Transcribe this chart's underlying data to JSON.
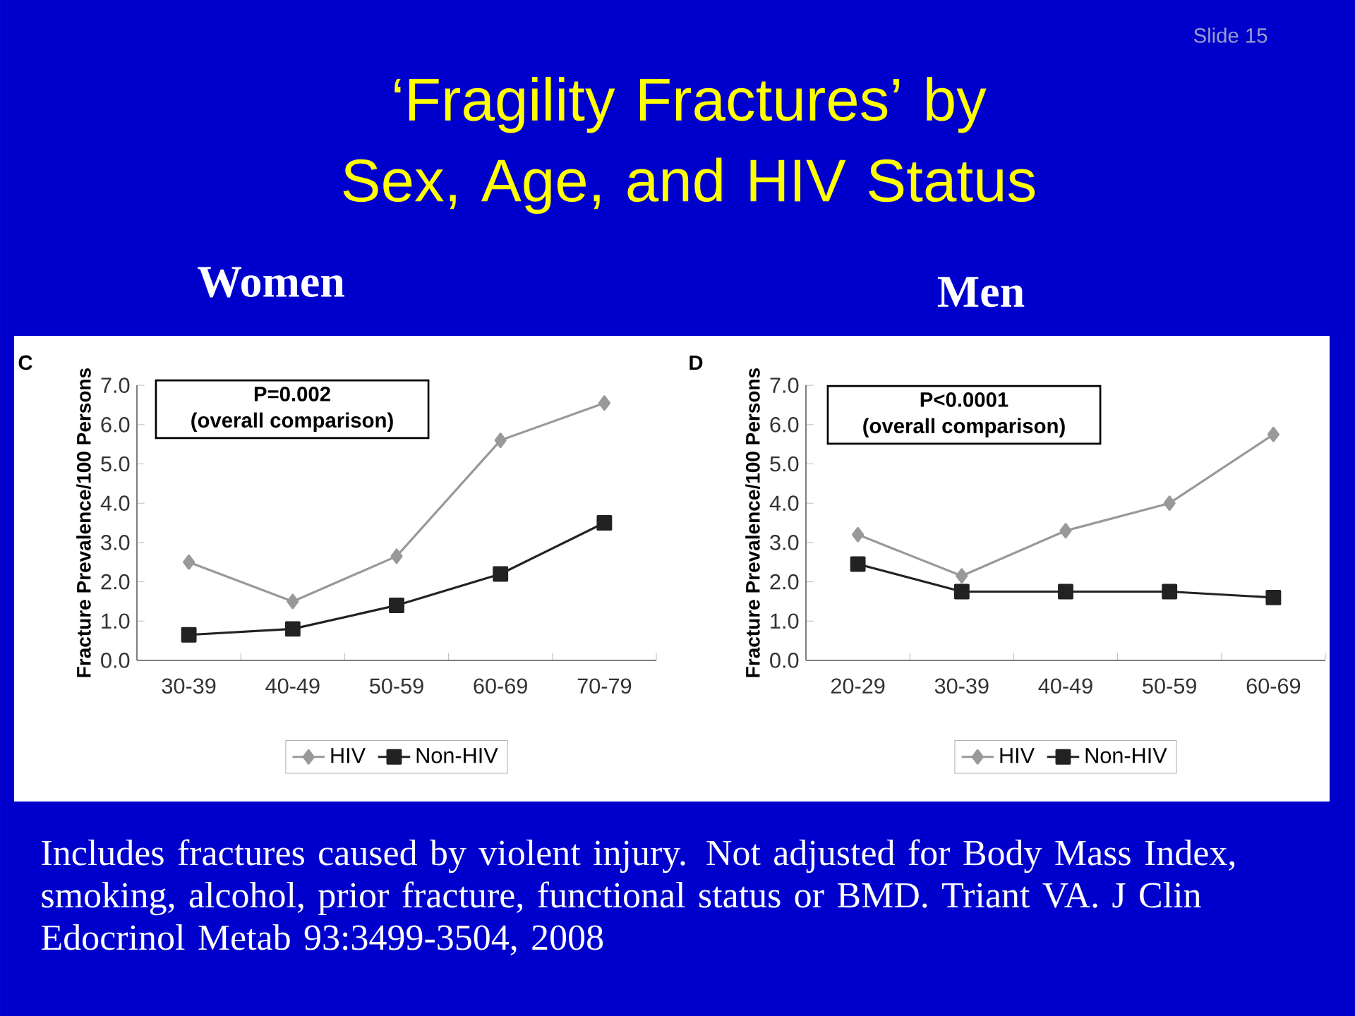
{
  "chart_data": [
    {
      "type": "line",
      "title": "‘Fragility Fractures’ by Sex, Age, and HIV Status",
      "subtitle": "Women",
      "ylabel": "Fracture Prevalence/100 Persons",
      "annotations": [
        "Slide 15",
        "C",
        "P=0.002",
        "(overall comparison)",
        "Includes fractures caused by violent injury.  Not adjusted for Body Mass Index, smoking, alcohol, prior fracture,  functional status or BMD.  Triant VA. J Clin Edocrinol Metab 93:3499-3504, 2008"
      ],
      "categories": [
        "30-39",
        "40-49",
        "50-59",
        "60-69",
        "70-79"
      ],
      "series": [
        {
          "name": "HIV",
          "color": "#999999",
          "marker": "diamond",
          "values": [
            2.5,
            1.5,
            2.65,
            5.6,
            6.55
          ]
        },
        {
          "name": "Non-HIV",
          "color": "#222222",
          "marker": "square",
          "values": [
            0.65,
            0.8,
            1.4,
            2.2,
            3.5
          ]
        }
      ],
      "ylim": [
        0,
        7
      ],
      "yticks": [
        {
          "value": 0,
          "label": "0.0"
        },
        {
          "value": 1,
          "label": "1.0"
        },
        {
          "value": 2,
          "label": "2.0"
        },
        {
          "value": 3,
          "label": "3.0"
        },
        {
          "value": 4,
          "label": "4.0"
        },
        {
          "value": 5,
          "label": "5.0"
        },
        {
          "value": 6,
          "label": "6.0"
        },
        {
          "value": 7,
          "label": "7.0"
        }
      ],
      "legend": "bottom"
    },
    {
      "type": "line",
      "subtitle": "Men",
      "ylabel": "Fracture Prevalence/100 Persons",
      "annotations": [
        "D",
        "P<0.0001",
        "(overall comparison)"
      ],
      "categories": [
        "20-29",
        "30-39",
        "40-49",
        "50-59",
        "60-69"
      ],
      "series": [
        {
          "name": "HIV",
          "color": "#999999",
          "marker": "diamond",
          "values": [
            3.2,
            2.15,
            3.3,
            4.0,
            5.75
          ]
        },
        {
          "name": "Non-HIV",
          "color": "#222222",
          "marker": "square",
          "values": [
            2.45,
            1.75,
            1.75,
            1.75,
            1.6
          ]
        }
      ],
      "ylim": [
        0,
        7
      ],
      "yticks": [
        {
          "value": 0,
          "label": "0.0"
        },
        {
          "value": 1,
          "label": "1.0"
        },
        {
          "value": 2,
          "label": "2.0"
        },
        {
          "value": 3,
          "label": "3.0"
        },
        {
          "value": 4,
          "label": "4.0"
        },
        {
          "value": 5,
          "label": "5.0"
        },
        {
          "value": 6,
          "label": "6.0"
        },
        {
          "value": 7,
          "label": "7.0"
        }
      ],
      "legend": "bottom"
    }
  ]
}
